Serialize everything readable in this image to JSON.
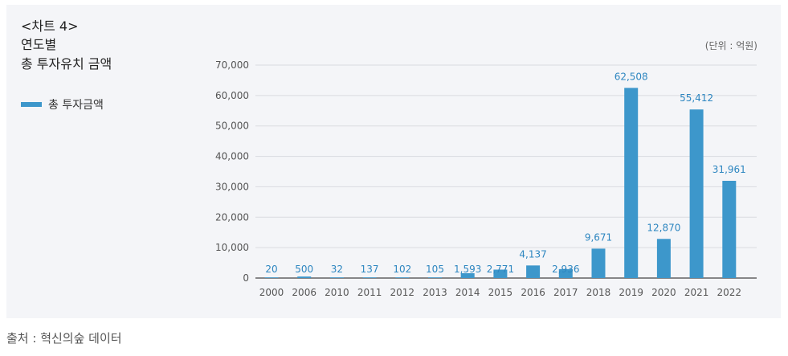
{
  "header": {
    "chart_tag": "<차트 4>",
    "title_line1": "연도별",
    "title_line2": "총 투자유치 금액"
  },
  "legend": {
    "label": "총 투자금액"
  },
  "unit_note": "(단위 : 억원)",
  "source": "출처 : 혁신의숲 데이터",
  "colors": {
    "bar": "#3d97cb",
    "label": "#2d86c0",
    "grid": "#d9dbe0",
    "axis": "#555555"
  },
  "chart_data": {
    "type": "bar",
    "title": "",
    "xlabel": "",
    "ylabel": "",
    "ylim": [
      0,
      70000
    ],
    "yticks": [
      0,
      10000,
      20000,
      30000,
      40000,
      50000,
      60000,
      70000
    ],
    "ytick_labels": [
      "0",
      "10,000",
      "20,000",
      "30,000",
      "40,000",
      "50,000",
      "60,000",
      "70,000"
    ],
    "grid": true,
    "legend_position": "left",
    "categories": [
      "2000",
      "2006",
      "2010",
      "2011",
      "2012",
      "2013",
      "2014",
      "2015",
      "2016",
      "2017",
      "2018",
      "2019",
      "2020",
      "2021",
      "2022"
    ],
    "series": [
      {
        "name": "총 투자금액",
        "values": [
          20,
          500,
          32,
          137,
          102,
          105,
          1593,
          2771,
          4137,
          2936,
          9671,
          62508,
          12870,
          55412,
          31961
        ],
        "labels": [
          "20",
          "500",
          "32",
          "137",
          "102",
          "105",
          "1,593",
          "2,771",
          "4,137",
          "2,936",
          "9,671",
          "62,508",
          "12,870",
          "55,412",
          "31,961"
        ]
      }
    ]
  }
}
